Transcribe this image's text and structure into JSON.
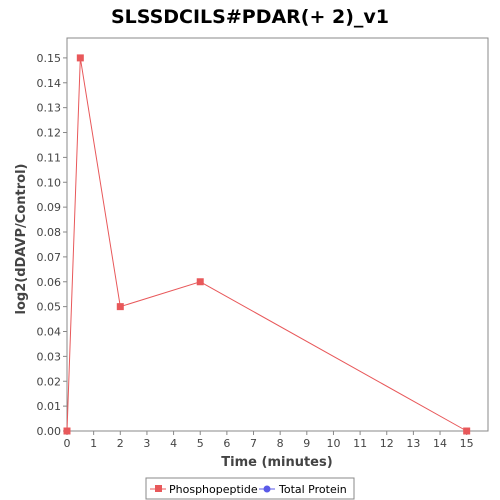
{
  "chart_data": {
    "type": "line",
    "title": "SLSSDCILS#PDAR(+ 2)_v1",
    "xlabel": "Time (minutes)",
    "ylabel": "log2(dDAVP/Control)",
    "xlim": [
      0,
      15.8
    ],
    "ylim": [
      0,
      0.158
    ],
    "xticks": [
      0,
      1,
      2,
      3,
      4,
      5,
      6,
      7,
      8,
      9,
      10,
      11,
      12,
      13,
      14,
      15
    ],
    "yticks": [
      0,
      0.01,
      0.02,
      0.03,
      0.04,
      0.05,
      0.06,
      0.07,
      0.08,
      0.09,
      0.1,
      0.11,
      0.12,
      0.13,
      0.14,
      0.15
    ],
    "ytick_labels": [
      "0.00",
      "0.01",
      "0.02",
      "0.03",
      "0.04",
      "0.05",
      "0.06",
      "0.07",
      "0.08",
      "0.09",
      "0.10",
      "0.11",
      "0.12",
      "0.13",
      "0.14",
      "0.15"
    ],
    "grid": false,
    "legend_position": "bottom-center",
    "series": [
      {
        "name": "Phosphopeptide",
        "color": "#e8585a",
        "marker": "square",
        "x": [
          0,
          0.5,
          2,
          5,
          15
        ],
        "y": [
          0.0,
          0.15,
          0.05,
          0.06,
          0.0
        ]
      },
      {
        "name": "Total Protein",
        "color": "#5a5ae8",
        "marker": "circle",
        "x": [],
        "y": []
      }
    ]
  }
}
